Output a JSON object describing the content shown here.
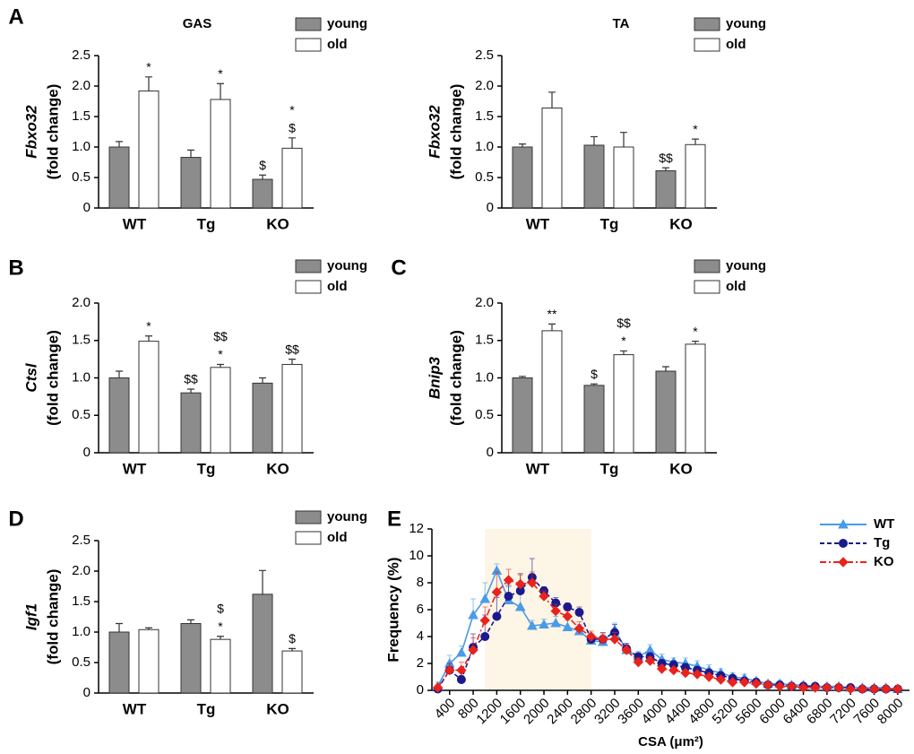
{
  "chart_data": [
    {
      "type": "bar",
      "panel": "A",
      "title": "GAS",
      "ylabel_gene": "Fbxo32",
      "ylabel": "(fold change)",
      "categories": [
        "WT",
        "Tg",
        "KO"
      ],
      "series": [
        {
          "name": "young",
          "color": "#8c8c8c",
          "values": [
            1.0,
            0.83,
            0.47
          ],
          "errors": [
            0.09,
            0.12,
            0.07
          ],
          "annotations": [
            [],
            [],
            [
              "$"
            ]
          ]
        },
        {
          "name": "old",
          "color": "#ffffff",
          "values": [
            1.92,
            1.78,
            0.98
          ],
          "errors": [
            0.23,
            0.26,
            0.17
          ],
          "annotations": [
            [
              "*"
            ],
            [
              "*"
            ],
            [
              "$",
              "*"
            ]
          ]
        }
      ],
      "ylim": [
        0,
        2.5
      ],
      "yticks": [
        0,
        0.5,
        {
          "value": 1,
          "label": "1.0"
        },
        1.5,
        {
          "value": 2,
          "label": "2.0"
        },
        2.5
      ]
    },
    {
      "type": "bar",
      "title": "TA",
      "ylabel_gene": "Fbxo32",
      "ylabel": "(fold change)",
      "categories": [
        "WT",
        "Tg",
        "KO"
      ],
      "series": [
        {
          "name": "young",
          "color": "#8c8c8c",
          "values": [
            1.0,
            1.03,
            0.61
          ],
          "errors": [
            0.05,
            0.14,
            0.05
          ],
          "annotations": [
            [],
            [],
            [
              "$$"
            ]
          ]
        },
        {
          "name": "old",
          "color": "#ffffff",
          "values": [
            1.64,
            1.0,
            1.04
          ],
          "errors": [
            0.26,
            0.24,
            0.09
          ],
          "annotations": [
            [],
            [],
            [
              "*"
            ]
          ]
        }
      ],
      "ylim": [
        0,
        2.5
      ],
      "yticks": [
        0,
        0.5,
        {
          "value": 1,
          "label": "1.0"
        },
        1.5,
        {
          "value": 2,
          "label": "2.0"
        },
        2.5
      ]
    },
    {
      "type": "bar",
      "panel": "B",
      "ylabel_gene": "Ctsl",
      "ylabel": "(fold change)",
      "categories": [
        "WT",
        "Tg",
        "KO"
      ],
      "series": [
        {
          "name": "young",
          "color": "#8c8c8c",
          "values": [
            1.0,
            0.8,
            0.93
          ],
          "errors": [
            0.09,
            0.05,
            0.07
          ],
          "annotations": [
            [],
            [
              "$$"
            ],
            []
          ]
        },
        {
          "name": "old",
          "color": "#ffffff",
          "values": [
            1.49,
            1.14,
            1.18
          ],
          "errors": [
            0.07,
            0.04,
            0.07
          ],
          "annotations": [
            [
              "*"
            ],
            [
              "*",
              "$$"
            ],
            [
              "$$"
            ]
          ]
        }
      ],
      "ylim": [
        0,
        2
      ],
      "yticks": [
        0,
        0.5,
        {
          "value": 1,
          "label": "1.0"
        },
        1.5,
        {
          "value": 2,
          "label": "2.0"
        }
      ]
    },
    {
      "type": "bar",
      "panel": "C",
      "ylabel_gene": "Bnip3",
      "ylabel": "(fold change)",
      "categories": [
        "WT",
        "Tg",
        "KO"
      ],
      "series": [
        {
          "name": "young",
          "color": "#8c8c8c",
          "values": [
            1.0,
            0.9,
            1.09
          ],
          "errors": [
            0.02,
            0.02,
            0.06
          ],
          "annotations": [
            [],
            [
              "$"
            ],
            []
          ]
        },
        {
          "name": "old",
          "color": "#ffffff",
          "values": [
            1.63,
            1.31,
            1.45
          ],
          "errors": [
            0.09,
            0.05,
            0.04
          ],
          "annotations": [
            [
              "**"
            ],
            [
              "*",
              "$$"
            ],
            [
              "*"
            ]
          ]
        }
      ],
      "ylim": [
        0,
        2
      ],
      "yticks": [
        0,
        0.5,
        {
          "value": 1,
          "label": "1.0"
        },
        1.5,
        {
          "value": 2,
          "label": "2.0"
        }
      ]
    },
    {
      "type": "bar",
      "panel": "D",
      "ylabel_gene": "Igf1",
      "ylabel": "(fold change)",
      "categories": [
        "WT",
        "Tg",
        "KO"
      ],
      "series": [
        {
          "name": "young",
          "color": "#8c8c8c",
          "values": [
            1.0,
            1.14,
            1.62
          ],
          "errors": [
            0.14,
            0.06,
            0.39
          ],
          "annotations": [
            [],
            [],
            []
          ]
        },
        {
          "name": "old",
          "color": "#ffffff",
          "values": [
            1.04,
            0.88,
            0.69
          ],
          "errors": [
            0.03,
            0.05,
            0.04
          ],
          "annotations": [
            [],
            [
              "*",
              "$"
            ],
            [
              "$"
            ]
          ]
        }
      ],
      "ylim": [
        0,
        2.5
      ],
      "yticks": [
        0,
        0.5,
        {
          "value": 1,
          "label": "1.0"
        },
        1.5,
        {
          "value": 2,
          "label": "2.0"
        },
        2.5
      ]
    },
    {
      "type": "line",
      "panel": "E",
      "xlabel": "CSA (μm²)",
      "ylabel": "Frequency (%)",
      "shaded_range": [
        1000,
        2800
      ],
      "x": [
        200,
        400,
        600,
        800,
        1000,
        1200,
        1400,
        1600,
        1800,
        2000,
        2200,
        2400,
        2600,
        2800,
        3000,
        3200,
        3400,
        3600,
        3800,
        4000,
        4200,
        4400,
        4600,
        4800,
        5000,
        5200,
        5400,
        5600,
        5800,
        6000,
        6200,
        6400,
        6600,
        6800,
        7000,
        7200,
        7400,
        7600,
        7800,
        8000
      ],
      "series": [
        {
          "name": "WT",
          "color": "#4a9be8",
          "marker": "triangle",
          "linestyle": "solid",
          "values": [
            0.3,
            2.0,
            2.8,
            5.6,
            6.8,
            8.9,
            6.7,
            6.2,
            4.8,
            4.9,
            5.0,
            4.7,
            4.4,
            3.7,
            3.6,
            4.5,
            3.0,
            2.5,
            3.0,
            2.3,
            2.1,
            2.0,
            1.8,
            1.5,
            1.3,
            1.0,
            0.9,
            0.7,
            0.5,
            0.5,
            0.4,
            0.4,
            0.3,
            0.3,
            0.3,
            0.2,
            0.2,
            0.2,
            0.2,
            0.1
          ],
          "errors": [
            0.3,
            0.6,
            0.5,
            1.2,
            1.2,
            0.5,
            1.0,
            1.0,
            0.4,
            0.4,
            0.5,
            0.5,
            0.5,
            0.4,
            0.4,
            0.5,
            0.4,
            0.4,
            0.4,
            0.4,
            0.3,
            0.4,
            0.4,
            0.4,
            0.3,
            0.3,
            0.3,
            0.2,
            0.2,
            0.2,
            0.2,
            0.2,
            0.2,
            0.1,
            0.1,
            0.1,
            0.1,
            0.1,
            0.1,
            0.1
          ]
        },
        {
          "name": "Tg",
          "color": "#1a1a8c",
          "marker": "circle",
          "linestyle": "dashed",
          "values": [
            0.1,
            1.5,
            0.8,
            3.2,
            4.0,
            5.5,
            7.0,
            7.4,
            8.4,
            7.4,
            6.5,
            6.2,
            5.8,
            3.8,
            3.8,
            4.3,
            3.1,
            2.5,
            2.5,
            2.0,
            1.9,
            1.7,
            1.5,
            1.3,
            1.1,
            0.9,
            0.7,
            0.6,
            0.4,
            0.4,
            0.3,
            0.3,
            0.3,
            0.2,
            0.2,
            0.2,
            0.1,
            0.1,
            0.1,
            0.1
          ],
          "errors": [
            0.1,
            0.5,
            0.3,
            1.0,
            1.6,
            1.4,
            0.8,
            1.2,
            1.4,
            0.3,
            0.4,
            0.3,
            0.4,
            0.4,
            0.5,
            0.6,
            0.4,
            0.3,
            0.3,
            0.3,
            0.3,
            0.3,
            0.2,
            0.2,
            0.2,
            0.2,
            0.2,
            0.2,
            0.1,
            0.1,
            0.1,
            0.1,
            0.1,
            0.1,
            0.1,
            0.1,
            0.1,
            0.1,
            0.1,
            0.1
          ]
        },
        {
          "name": "KO",
          "color": "#e8231c",
          "marker": "diamond",
          "linestyle": "dashdot",
          "values": [
            0.2,
            1.5,
            1.5,
            3.0,
            5.2,
            7.3,
            8.2,
            7.9,
            8.0,
            7.0,
            5.9,
            5.5,
            4.6,
            4.0,
            3.8,
            3.8,
            3.0,
            2.1,
            2.2,
            1.6,
            1.5,
            1.3,
            1.2,
            1.0,
            0.8,
            0.6,
            0.6,
            0.5,
            0.4,
            0.3,
            0.3,
            0.2,
            0.2,
            0.2,
            0.2,
            0.1,
            0.1,
            0.1,
            0.1,
            0.1
          ],
          "errors": [
            0.2,
            0.5,
            0.6,
            0.9,
            1.0,
            1.5,
            0.8,
            0.8,
            0.8,
            0.4,
            0.5,
            0.4,
            0.5,
            0.4,
            0.4,
            0.5,
            0.3,
            0.3,
            0.3,
            0.3,
            0.2,
            0.2,
            0.2,
            0.2,
            0.2,
            0.2,
            0.2,
            0.1,
            0.1,
            0.1,
            0.1,
            0.1,
            0.1,
            0.1,
            0.1,
            0.1,
            0.1,
            0.1,
            0.1,
            0.1
          ]
        }
      ],
      "xlim": [
        100,
        8200
      ],
      "xticks": [
        400,
        800,
        1200,
        1600,
        2000,
        2400,
        2800,
        3200,
        3600,
        4000,
        4400,
        4800,
        5200,
        5600,
        6000,
        6400,
        6800,
        7200,
        7600,
        8000
      ],
      "ylim": [
        0,
        12
      ],
      "yticks": [
        0,
        2,
        4,
        6,
        8,
        10,
        12
      ]
    }
  ]
}
